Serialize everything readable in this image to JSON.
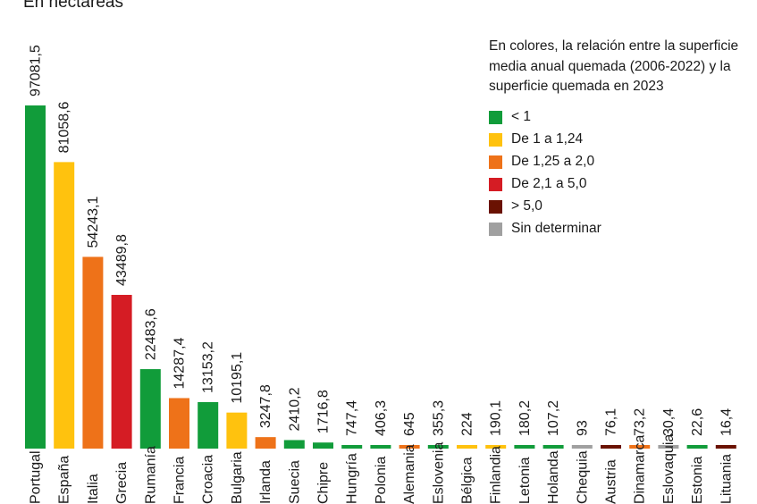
{
  "chart_data": {
    "type": "bar",
    "subtitle": "En hectáreas",
    "categories": [
      "Portugal",
      "España",
      "Italia",
      "Grecia",
      "Rumanía",
      "Francia",
      "Croacia",
      "Bulgaria",
      "Irlanda",
      "Suecia",
      "Chipre",
      "Hungría",
      "Polonia",
      "Alemania",
      "Eslovenia",
      "Bélgica",
      "Finlandia",
      "Letonia",
      "Holanda",
      "Chequia",
      "Austria",
      "Dinamarca",
      "Eslovaquia",
      "Estonia",
      "Lituania"
    ],
    "values": [
      97081.5,
      81058.6,
      54243.1,
      43489.8,
      22483.6,
      14287.4,
      13153.2,
      10195.1,
      3247.8,
      2410.2,
      1716.8,
      747.4,
      406.3,
      645,
      355.3,
      224,
      190.1,
      180.2,
      107.2,
      93,
      76.1,
      73.2,
      30.4,
      22.6,
      16.4
    ],
    "value_labels": [
      "97081,5",
      "81058,6",
      "54243,1",
      "43489,8",
      "22483,6",
      "14287,4",
      "13153,2",
      "10195,1",
      "3247,8",
      "2410,2",
      "1716,8",
      "747,4",
      "406,3",
      "645",
      "355,3",
      "224",
      "190,1",
      "180,2",
      "107,2",
      "93",
      "76,1",
      "73,2",
      "30,4",
      "22,6",
      "16,4"
    ],
    "ratio_class": [
      "lt1",
      "1to124",
      "125to2",
      "21to5",
      "lt1",
      "125to2",
      "lt1",
      "1to124",
      "125to2",
      "lt1",
      "lt1",
      "lt1",
      "lt1",
      "125to2",
      "lt1",
      "1to124",
      "1to124",
      "lt1",
      "lt1",
      "undetermined",
      "gt5",
      "125to2",
      "undetermined",
      "lt1",
      "gt5"
    ],
    "legend": {
      "title": "En colores, la relación entre la superficie media anual quemada (2006-2022) y la superficie quemada en 2023",
      "items": [
        {
          "key": "lt1",
          "label": "< 1",
          "color": "#119c3a"
        },
        {
          "key": "1to124",
          "label": "De 1 a 1,24",
          "color": "#ffc20e"
        },
        {
          "key": "125to2",
          "label": "De 1,25 a 2,0",
          "color": "#ee7219"
        },
        {
          "key": "21to5",
          "label": "De 2,1 a 5,0",
          "color": "#d51c24"
        },
        {
          "key": "gt5",
          "label": "> 5,0",
          "color": "#6a1202"
        },
        {
          "key": "undetermined",
          "label": "Sin determinar",
          "color": "#a0a0a0"
        }
      ]
    }
  }
}
